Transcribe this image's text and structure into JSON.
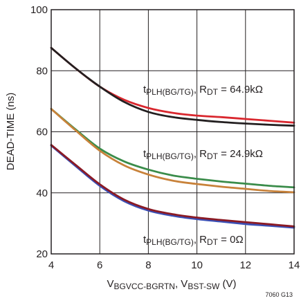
{
  "chart_data": {
    "type": "line",
    "xlabel": {
      "parts": [
        {
          "text": "V",
          "sub": false
        },
        {
          "text": "BGVCC-BGRTN",
          "sub": true
        },
        {
          "text": ", V",
          "sub": false
        },
        {
          "text": "BST-SW",
          "sub": true
        },
        {
          "text": " (V)",
          "sub": false
        }
      ]
    },
    "ylabel": "DEAD-TIME (ns)",
    "xlim": [
      4,
      14
    ],
    "ylim": [
      20,
      100
    ],
    "xticks": [
      4,
      6,
      8,
      10,
      12,
      14
    ],
    "yticks": [
      20,
      40,
      60,
      80,
      100
    ],
    "grid": true,
    "figure_id": "7060 G13",
    "series": [
      {
        "color": "#d9272e",
        "x": [
          4,
          5,
          6,
          7,
          8,
          9,
          10,
          11,
          12,
          13,
          14
        ],
        "y": [
          87.5,
          80.8,
          74.8,
          70.5,
          67.8,
          66.2,
          65.3,
          64.8,
          64.2,
          63.6,
          63.0
        ]
      },
      {
        "color": "#231f20",
        "x": [
          4,
          5,
          6,
          7,
          8,
          9,
          10,
          11,
          12,
          13,
          14
        ],
        "y": [
          87.5,
          80.8,
          74.8,
          69.8,
          66.5,
          64.8,
          63.9,
          63.2,
          62.7,
          62.3,
          62.0
        ]
      },
      {
        "color": "#3a8c4a",
        "x": [
          4,
          5,
          6,
          7,
          8,
          9,
          10,
          11,
          12,
          13,
          14
        ],
        "y": [
          67.5,
          60.8,
          54.5,
          50.3,
          47.6,
          45.7,
          44.6,
          43.7,
          43.0,
          42.3,
          41.8
        ]
      },
      {
        "color": "#c8823a",
        "x": [
          4,
          5,
          6,
          7,
          8,
          9,
          10,
          11,
          12,
          13,
          14
        ],
        "y": [
          67.5,
          60.5,
          53.8,
          49.0,
          46.0,
          44.0,
          42.9,
          42.0,
          41.3,
          40.6,
          40.2
        ]
      },
      {
        "color": "#3a4fb5",
        "x": [
          4,
          5,
          6,
          7,
          8,
          9,
          10,
          11,
          12,
          13,
          14
        ],
        "y": [
          55.5,
          48.8,
          42.3,
          37.3,
          34.2,
          32.5,
          31.4,
          30.6,
          29.8,
          29.2,
          28.6
        ]
      },
      {
        "color": "#8b1a24",
        "x": [
          4,
          5,
          6,
          7,
          8,
          9,
          10,
          11,
          12,
          13,
          14
        ],
        "y": [
          55.7,
          49.2,
          42.8,
          37.8,
          34.7,
          33.0,
          31.9,
          31.1,
          30.4,
          29.7,
          29.0
        ]
      }
    ],
    "annotations": [
      {
        "parts": [
          {
            "text": "t",
            "sub": false
          },
          {
            "text": "PLH(BG/TG)",
            "sub": true
          },
          {
            "text": ", R",
            "sub": false
          },
          {
            "text": "DT",
            "sub": true
          },
          {
            "text": " = 64.9kΩ",
            "sub": false
          }
        ]
      },
      {
        "parts": [
          {
            "text": "t",
            "sub": false
          },
          {
            "text": "PLH(BG/TG)",
            "sub": true
          },
          {
            "text": ", R",
            "sub": false
          },
          {
            "text": "DT",
            "sub": true
          },
          {
            "text": " = 24.9kΩ",
            "sub": false
          }
        ]
      },
      {
        "parts": [
          {
            "text": "t",
            "sub": false
          },
          {
            "text": "PLH(BG/TG)",
            "sub": true
          },
          {
            "text": ", R",
            "sub": false
          },
          {
            "text": "DT",
            "sub": true
          },
          {
            "text": " = 0Ω",
            "sub": false
          }
        ]
      }
    ]
  }
}
